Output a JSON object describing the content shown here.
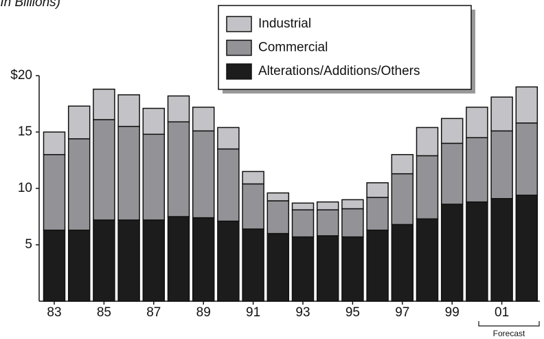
{
  "chart_data": {
    "type": "stacked_bar",
    "subtitle": "(In Billions)",
    "categories": [
      "83",
      null,
      "85",
      null,
      "87",
      null,
      "89",
      null,
      "91",
      null,
      "93",
      null,
      "95",
      null,
      "97",
      null,
      "99",
      null,
      "01",
      null
    ],
    "series": [
      {
        "name": "Alterations/Additions/Others",
        "color": "#1c1c1c",
        "values": [
          6.3,
          6.3,
          7.2,
          7.2,
          7.2,
          7.5,
          7.4,
          7.1,
          6.4,
          6.0,
          5.7,
          5.8,
          5.7,
          6.3,
          6.8,
          7.3,
          8.6,
          8.8,
          9.1,
          9.4
        ]
      },
      {
        "name": "Commercial",
        "color": "#939397",
        "values": [
          6.7,
          8.1,
          8.9,
          8.3,
          7.6,
          8.4,
          7.7,
          6.4,
          4.0,
          2.9,
          2.4,
          2.3,
          2.5,
          2.9,
          4.5,
          5.6,
          5.4,
          5.7,
          6.0,
          6.4
        ]
      },
      {
        "name": "Industrial",
        "color": "#c3c3c7",
        "values": [
          2.0,
          2.9,
          2.7,
          2.8,
          2.3,
          2.3,
          2.1,
          1.9,
          1.1,
          0.7,
          0.6,
          0.7,
          0.8,
          1.3,
          1.7,
          2.5,
          2.2,
          2.7,
          3.0,
          3.2
        ]
      }
    ],
    "ylim": [
      0,
      20
    ],
    "yticks": [
      5,
      10,
      15,
      {
        "value": 20,
        "label": "$20"
      }
    ],
    "forecast_label": "Forecast",
    "legend": "top-right"
  }
}
